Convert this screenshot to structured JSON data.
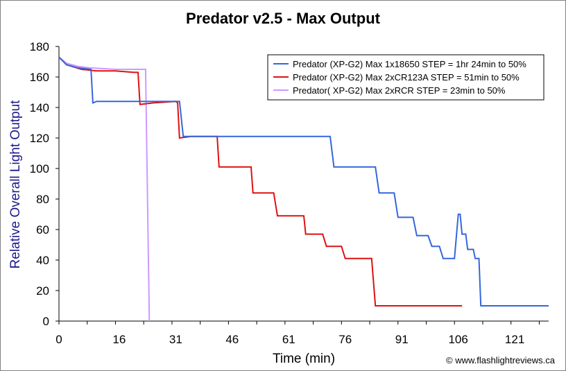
{
  "chart_data": {
    "type": "line",
    "title": "Predator v2.5 - Max Output",
    "xlabel": "Time (min)",
    "ylabel": "Relative Overall Light Output",
    "xlim": [
      0,
      130
    ],
    "ylim": [
      0,
      180
    ],
    "xticks": [
      0,
      16,
      31,
      46,
      61,
      76,
      91,
      106,
      121
    ],
    "yticks": [
      0,
      20,
      40,
      60,
      80,
      100,
      120,
      140,
      160,
      180
    ],
    "legend_position": "top-right",
    "grid": false,
    "series": [
      {
        "name": "Predator (XP-G2) Max 1x18650 STEP = 1hr 24min to 50%",
        "color": "#3366dd",
        "points": [
          [
            0,
            173
          ],
          [
            2,
            168
          ],
          [
            5,
            166
          ],
          [
            8.5,
            165
          ],
          [
            9,
            143
          ],
          [
            10,
            144
          ],
          [
            20,
            144
          ],
          [
            31,
            144
          ],
          [
            32,
            144
          ],
          [
            33,
            121
          ],
          [
            40,
            121
          ],
          [
            50,
            121
          ],
          [
            60,
            121
          ],
          [
            72,
            121
          ],
          [
            73,
            101
          ],
          [
            80,
            101
          ],
          [
            84,
            101
          ],
          [
            85,
            84
          ],
          [
            89,
            84
          ],
          [
            90,
            68
          ],
          [
            94,
            68
          ],
          [
            95,
            56
          ],
          [
            98,
            56
          ],
          [
            99,
            49
          ],
          [
            101,
            49
          ],
          [
            102,
            41
          ],
          [
            105,
            41
          ],
          [
            106,
            70
          ],
          [
            106.5,
            70
          ],
          [
            107,
            57
          ],
          [
            108,
            57
          ],
          [
            108.5,
            47
          ],
          [
            110,
            47
          ],
          [
            110.5,
            41
          ],
          [
            111.5,
            41
          ],
          [
            112,
            10
          ],
          [
            130,
            10
          ]
        ]
      },
      {
        "name": "Predator (XP-G2) Max 2xCR123A STEP = 51min to 50%",
        "color": "#dd1111",
        "points": [
          [
            0,
            173
          ],
          [
            2,
            168
          ],
          [
            6,
            165
          ],
          [
            10,
            164
          ],
          [
            15,
            164
          ],
          [
            20,
            163
          ],
          [
            21,
            163
          ],
          [
            21.5,
            142
          ],
          [
            25,
            143
          ],
          [
            31,
            144
          ],
          [
            31.5,
            143
          ],
          [
            32,
            120
          ],
          [
            35,
            121
          ],
          [
            42,
            121
          ],
          [
            42.5,
            101
          ],
          [
            50,
            101
          ],
          [
            51,
            101
          ],
          [
            51.5,
            84
          ],
          [
            57,
            84
          ],
          [
            58,
            69
          ],
          [
            63,
            69
          ],
          [
            65,
            69
          ],
          [
            65.5,
            57
          ],
          [
            70,
            57
          ],
          [
            71,
            49
          ],
          [
            75,
            49
          ],
          [
            76,
            41
          ],
          [
            83,
            41
          ],
          [
            84,
            10
          ],
          [
            107,
            10
          ]
        ]
      },
      {
        "name": "Predator( XP-G2) Max 2xRCR STEP = 23min to 50%",
        "color": "#cc99ff",
        "points": [
          [
            0,
            173
          ],
          [
            2,
            169
          ],
          [
            5,
            167
          ],
          [
            8,
            166
          ],
          [
            15,
            165
          ],
          [
            22,
            165
          ],
          [
            23,
            165
          ],
          [
            24,
            0
          ]
        ]
      }
    ]
  },
  "credit": "© www.flashlightreviews.ca"
}
